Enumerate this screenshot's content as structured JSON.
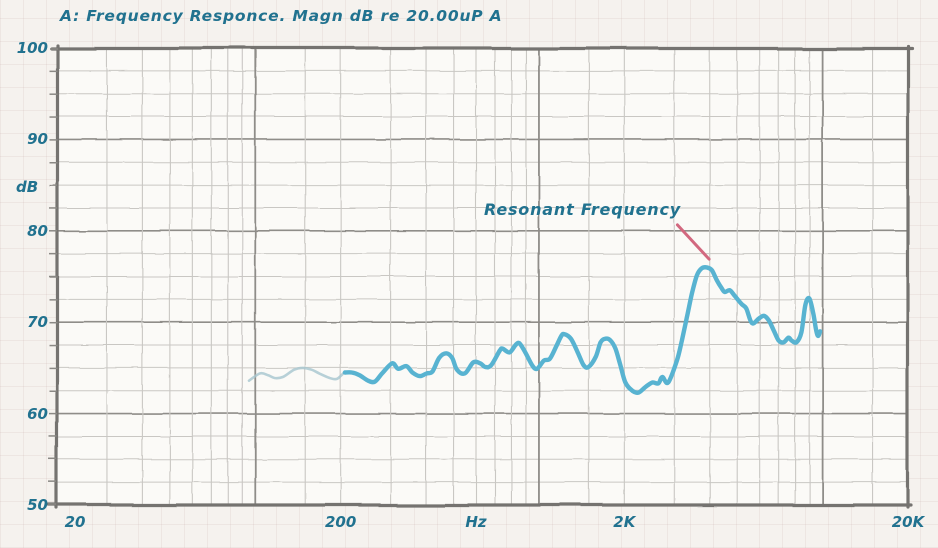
{
  "chart_data": {
    "type": "line",
    "title": "A: Frequency Responce. Magn dB re 20.00uP A",
    "ylabel": "dB",
    "xlabel": "Hz",
    "x_scale": "log",
    "x_range_hz": [
      20,
      20000
    ],
    "y_range_db": [
      50,
      100
    ],
    "y_minor_step_db": 2.5,
    "y_ticks": [
      {
        "value": 100,
        "label": "100"
      },
      {
        "value": 90,
        "label": "90"
      },
      {
        "value": 80,
        "label": "80"
      },
      {
        "value": 70,
        "label": "70"
      },
      {
        "value": 60,
        "label": "60"
      },
      {
        "value": 50,
        "label": "50"
      }
    ],
    "x_ticks": [
      {
        "hz": 20,
        "label": "20"
      },
      {
        "hz": 200,
        "label": "200"
      },
      {
        "hz": 2000,
        "label": "2K"
      },
      {
        "hz": 20000,
        "label": "20K"
      }
    ],
    "x_gridlines_hz": [
      30,
      40,
      50,
      60,
      70,
      80,
      90,
      100,
      150,
      200,
      300,
      400,
      500,
      600,
      700,
      800,
      900,
      1000,
      1500,
      2000,
      3000,
      4000,
      5000,
      6000,
      7000,
      8000,
      9000,
      10000,
      15000
    ],
    "x_major_gridlines_hz": [
      100,
      1000,
      10000
    ],
    "grid": true,
    "legend": false,
    "colors": {
      "curve": "#58b3d1",
      "curve_start": "#a6c5ce",
      "annotation_line": "#d2687f",
      "text": "#21728f",
      "grid_minor": "#c9c7c3",
      "grid_major": "#8f8d89",
      "border": "#75736f",
      "plot_background": "#fbfaf7"
    },
    "series": [
      {
        "name": "frequency-response-magnitude",
        "thin_until_hz": 215,
        "points_hz_db": [
          [
            95,
            63.6
          ],
          [
            104,
            64.4
          ],
          [
            111,
            64.2
          ],
          [
            117,
            63.9
          ],
          [
            125,
            64.0
          ],
          [
            137,
            64.8
          ],
          [
            147,
            65.0
          ],
          [
            158,
            64.8
          ],
          [
            168,
            64.4
          ],
          [
            183,
            63.9
          ],
          [
            194,
            63.8
          ],
          [
            207,
            64.5
          ],
          [
            219,
            64.5
          ],
          [
            233,
            64.2
          ],
          [
            250,
            63.6
          ],
          [
            264,
            63.5
          ],
          [
            280,
            64.4
          ],
          [
            304,
            65.5
          ],
          [
            319,
            64.9
          ],
          [
            341,
            65.2
          ],
          [
            358,
            64.5
          ],
          [
            380,
            64.1
          ],
          [
            402,
            64.4
          ],
          [
            421,
            64.6
          ],
          [
            445,
            66.1
          ],
          [
            471,
            66.6
          ],
          [
            494,
            66.1
          ],
          [
            514,
            64.8
          ],
          [
            548,
            64.4
          ],
          [
            587,
            65.6
          ],
          [
            621,
            65.5
          ],
          [
            647,
            65.1
          ],
          [
            679,
            65.3
          ],
          [
            728,
            66.9
          ],
          [
            745,
            67.1
          ],
          [
            788,
            66.7
          ],
          [
            827,
            67.5
          ],
          [
            853,
            67.7
          ],
          [
            895,
            66.7
          ],
          [
            946,
            65.3
          ],
          [
            984,
            64.9
          ],
          [
            1041,
            65.8
          ],
          [
            1092,
            66.0
          ],
          [
            1152,
            67.4
          ],
          [
            1199,
            68.5
          ],
          [
            1228,
            68.7
          ],
          [
            1296,
            68.2
          ],
          [
            1370,
            66.7
          ],
          [
            1437,
            65.3
          ],
          [
            1495,
            65.1
          ],
          [
            1585,
            66.2
          ],
          [
            1650,
            67.8
          ],
          [
            1717,
            68.2
          ],
          [
            1788,
            68.0
          ],
          [
            1861,
            67.1
          ],
          [
            1937,
            65.3
          ],
          [
            2017,
            63.4
          ],
          [
            2135,
            62.5
          ],
          [
            2243,
            62.3
          ],
          [
            2372,
            62.9
          ],
          [
            2511,
            63.4
          ],
          [
            2636,
            63.3
          ],
          [
            2723,
            64.0
          ],
          [
            2856,
            63.4
          ],
          [
            3064,
            65.8
          ],
          [
            3191,
            68.0
          ],
          [
            3322,
            70.5
          ],
          [
            3459,
            73.1
          ],
          [
            3602,
            75.1
          ],
          [
            3751,
            75.9
          ],
          [
            3906,
            76.0
          ],
          [
            4067,
            75.7
          ],
          [
            4235,
            74.6
          ],
          [
            4411,
            73.7
          ],
          [
            4519,
            73.3
          ],
          [
            4703,
            73.5
          ],
          [
            4895,
            72.9
          ],
          [
            5176,
            72.0
          ],
          [
            5381,
            71.5
          ],
          [
            5634,
            69.9
          ],
          [
            5963,
            70.4
          ],
          [
            6206,
            70.7
          ],
          [
            6460,
            70.2
          ],
          [
            6724,
            69.1
          ],
          [
            6999,
            68.0
          ],
          [
            7286,
            67.8
          ],
          [
            7584,
            68.3
          ],
          [
            7769,
            68.0
          ],
          [
            8087,
            67.8
          ],
          [
            8418,
            68.9
          ],
          [
            8693,
            71.9
          ],
          [
            8975,
            72.6
          ],
          [
            9267,
            71.0
          ],
          [
            9490,
            69.1
          ],
          [
            9641,
            68.5
          ],
          [
            9795,
            69.0
          ]
        ]
      }
    ],
    "annotation": {
      "text": "Resonant Frequency",
      "line_from_hz_db": [
        3065,
        80.7
      ],
      "line_to_hz_db": [
        3980,
        76.9
      ],
      "peak_hz_db": [
        3906,
        76.0
      ]
    }
  }
}
